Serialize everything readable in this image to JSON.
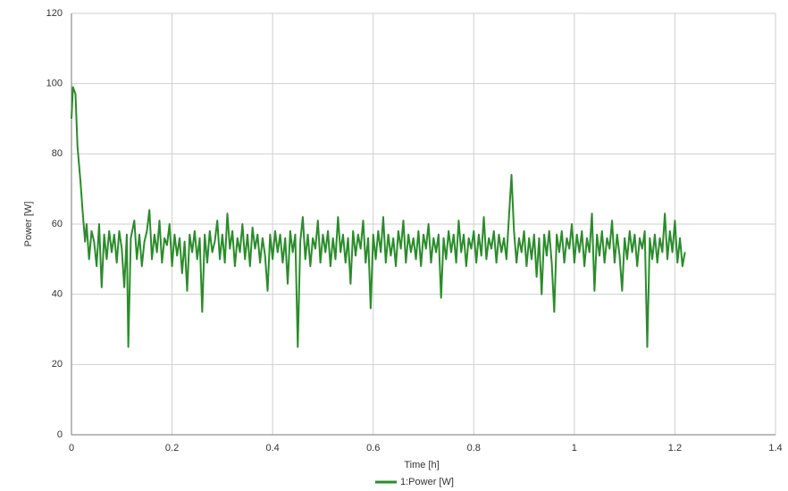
{
  "chart_data": {
    "type": "line",
    "x_label": "Time [h]",
    "y_label": "Power [W]",
    "xlim": [
      0,
      1.4
    ],
    "ylim": [
      0,
      120
    ],
    "xticks": [
      0,
      0.2,
      0.4,
      0.6,
      0.8,
      1,
      1.2,
      1.4
    ],
    "yticks": [
      0,
      20,
      40,
      60,
      80,
      100,
      120
    ],
    "grid": true,
    "legend": "bottom",
    "x": [
      0,
      0.003,
      0.008,
      0.012,
      0.018,
      0.022,
      0.027,
      0.03,
      0.035,
      0.04,
      0.045,
      0.05,
      0.055,
      0.06,
      0.065,
      0.07,
      0.075,
      0.08,
      0.085,
      0.09,
      0.095,
      0.1,
      0.105,
      0.11,
      0.113,
      0.118,
      0.125,
      0.13,
      0.135,
      0.14,
      0.145,
      0.15,
      0.155,
      0.16,
      0.165,
      0.17,
      0.175,
      0.18,
      0.185,
      0.19,
      0.195,
      0.2,
      0.205,
      0.21,
      0.215,
      0.22,
      0.225,
      0.23,
      0.235,
      0.24,
      0.245,
      0.25,
      0.255,
      0.26,
      0.265,
      0.27,
      0.275,
      0.28,
      0.285,
      0.29,
      0.295,
      0.3,
      0.305,
      0.31,
      0.315,
      0.32,
      0.325,
      0.33,
      0.335,
      0.34,
      0.345,
      0.35,
      0.355,
      0.36,
      0.365,
      0.37,
      0.375,
      0.38,
      0.385,
      0.39,
      0.395,
      0.4,
      0.405,
      0.41,
      0.415,
      0.42,
      0.425,
      0.43,
      0.435,
      0.44,
      0.445,
      0.45,
      0.455,
      0.46,
      0.465,
      0.47,
      0.475,
      0.48,
      0.485,
      0.49,
      0.495,
      0.5,
      0.505,
      0.51,
      0.515,
      0.52,
      0.525,
      0.53,
      0.535,
      0.54,
      0.545,
      0.55,
      0.555,
      0.56,
      0.565,
      0.57,
      0.575,
      0.58,
      0.585,
      0.59,
      0.595,
      0.6,
      0.605,
      0.61,
      0.615,
      0.62,
      0.625,
      0.63,
      0.635,
      0.64,
      0.645,
      0.65,
      0.655,
      0.66,
      0.665,
      0.67,
      0.675,
      0.68,
      0.685,
      0.69,
      0.695,
      0.7,
      0.705,
      0.71,
      0.715,
      0.72,
      0.725,
      0.73,
      0.735,
      0.74,
      0.745,
      0.75,
      0.755,
      0.76,
      0.765,
      0.77,
      0.775,
      0.78,
      0.785,
      0.79,
      0.795,
      0.8,
      0.805,
      0.81,
      0.815,
      0.82,
      0.825,
      0.83,
      0.835,
      0.84,
      0.845,
      0.85,
      0.855,
      0.86,
      0.865,
      0.87,
      0.875,
      0.88,
      0.885,
      0.89,
      0.895,
      0.9,
      0.905,
      0.91,
      0.915,
      0.92,
      0.925,
      0.93,
      0.935,
      0.94,
      0.945,
      0.95,
      0.955,
      0.96,
      0.965,
      0.97,
      0.975,
      0.98,
      0.985,
      0.99,
      0.995,
      1.0,
      1.005,
      1.01,
      1.015,
      1.02,
      1.025,
      1.03,
      1.035,
      1.04,
      1.045,
      1.05,
      1.055,
      1.06,
      1.065,
      1.07,
      1.075,
      1.08,
      1.085,
      1.09,
      1.095,
      1.1,
      1.105,
      1.11,
      1.115,
      1.12,
      1.125,
      1.13,
      1.135,
      1.14,
      1.145,
      1.15,
      1.155,
      1.16,
      1.165,
      1.17,
      1.175,
      1.18,
      1.185,
      1.19,
      1.195,
      1.2,
      1.205,
      1.21,
      1.215,
      1.22
    ],
    "series": [
      {
        "name": "1:Power [W]",
        "color": "#2a8c2a",
        "values": [
          90,
          99,
          97,
          82,
          72,
          64,
          55,
          60,
          50,
          58,
          55,
          48,
          60,
          42,
          57,
          50,
          58,
          52,
          57,
          49,
          58,
          53,
          42,
          57,
          25,
          56,
          61,
          50,
          57,
          48,
          55,
          58,
          64,
          50,
          57,
          52,
          61,
          49,
          56,
          54,
          60,
          48,
          57,
          51,
          56,
          46,
          55,
          41,
          57,
          52,
          58,
          50,
          56,
          35,
          57,
          49,
          58,
          52,
          55,
          61,
          50,
          57,
          49,
          63,
          53,
          58,
          48,
          56,
          52,
          60,
          50,
          57,
          48,
          59,
          53,
          57,
          49,
          56,
          51,
          41,
          57,
          50,
          58,
          52,
          57,
          49,
          56,
          43,
          58,
          52,
          57,
          25,
          55,
          62,
          50,
          57,
          48,
          56,
          53,
          61,
          49,
          57,
          52,
          58,
          48,
          56,
          50,
          62,
          52,
          57,
          49,
          56,
          43,
          58,
          51,
          57,
          53,
          61,
          49,
          56,
          36,
          57,
          50,
          58,
          52,
          62,
          49,
          57,
          51,
          56,
          48,
          58,
          53,
          61,
          49,
          57,
          52,
          56,
          50,
          58,
          48,
          57,
          53,
          60,
          49,
          56,
          52,
          57,
          39,
          56,
          50,
          58,
          52,
          57,
          49,
          61,
          52,
          57,
          48,
          56,
          53,
          58,
          49,
          57,
          51,
          62,
          50,
          56,
          53,
          58,
          49,
          57,
          52,
          56,
          50,
          62,
          74,
          58,
          49,
          56,
          52,
          58,
          48,
          56,
          50,
          57,
          45,
          56,
          40,
          57,
          51,
          58,
          49,
          35,
          57,
          52,
          58,
          49,
          56,
          53,
          60,
          49,
          57,
          52,
          58,
          48,
          56,
          52,
          63,
          41,
          57,
          51,
          58,
          49,
          56,
          53,
          61,
          49,
          57,
          51,
          41,
          56,
          50,
          58,
          52,
          57,
          48,
          56,
          53,
          58,
          25,
          56,
          50,
          57,
          49,
          56,
          52,
          63,
          50,
          58,
          52,
          61,
          49,
          56,
          48,
          52
        ]
      }
    ]
  }
}
